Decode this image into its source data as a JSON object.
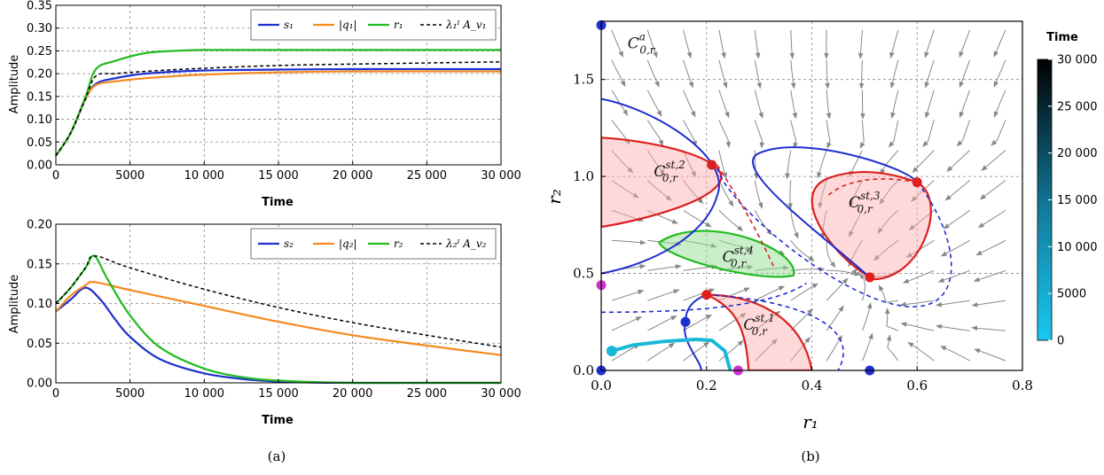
{
  "captions": {
    "a": "(a)",
    "b": "(b)"
  },
  "colors": {
    "blue": "#1f2fd0",
    "orange": "#f58a1f",
    "green": "#22bb22",
    "black": "#000000",
    "red": "#dd1f1f",
    "cyan": "#19b8d8",
    "magenta": "#cc33cc",
    "stream": "#888888",
    "red_fill": "rgba(255,170,170,0.45)",
    "green_fill": "rgba(150,220,150,0.5)"
  },
  "chart_data": [
    {
      "id": "top",
      "type": "line",
      "xlabel": "Time",
      "ylabel": "Amplitude",
      "xlim": [
        0,
        30000
      ],
      "ylim": [
        0,
        0.35
      ],
      "xticks": [
        0,
        5000,
        10000,
        15000,
        20000,
        25000,
        30000
      ],
      "xtick_labels": [
        "0",
        "5000",
        "10 000",
        "15 000",
        "20 000",
        "25 000",
        "30 000"
      ],
      "yticks": [
        0,
        0.05,
        0.1,
        0.15,
        0.2,
        0.25,
        0.3,
        0.35
      ],
      "ytick_labels": [
        "0.00",
        "0.05",
        "0.10",
        "0.15",
        "0.20",
        "0.25",
        "0.30",
        "0.35"
      ],
      "grid": true,
      "legend_position": "top-right",
      "series": [
        {
          "name": "s₁",
          "color": "blue",
          "dash": false,
          "x": [
            0,
            1000,
            2000,
            2700,
            4000,
            6000,
            10000,
            15000,
            20000,
            30000
          ],
          "y": [
            0.02,
            0.07,
            0.145,
            0.178,
            0.19,
            0.2,
            0.207,
            0.209,
            0.21,
            0.21
          ]
        },
        {
          "name": "|q₁|",
          "color": "orange",
          "dash": false,
          "x": [
            0,
            1000,
            2000,
            2700,
            4000,
            6000,
            10000,
            15000,
            20000,
            30000
          ],
          "y": [
            0.02,
            0.07,
            0.145,
            0.175,
            0.183,
            0.19,
            0.198,
            0.203,
            0.205,
            0.205
          ]
        },
        {
          "name": "r₁",
          "color": "green",
          "dash": false,
          "x": [
            0,
            1000,
            2000,
            2700,
            4000,
            6000,
            8000,
            10000,
            15000,
            30000
          ],
          "y": [
            0.02,
            0.07,
            0.15,
            0.21,
            0.228,
            0.245,
            0.25,
            0.252,
            0.252,
            0.252
          ]
        },
        {
          "name": "λ₁ᴵ A_v₁",
          "color": "black",
          "dash": true,
          "x": [
            0,
            1000,
            2000,
            2700,
            4000,
            6000,
            10000,
            15000,
            20000,
            30000
          ],
          "y": [
            0.02,
            0.07,
            0.145,
            0.195,
            0.2,
            0.205,
            0.212,
            0.218,
            0.221,
            0.226
          ]
        }
      ]
    },
    {
      "id": "bottom",
      "type": "line",
      "xlabel": "Time",
      "ylabel": "Amplitude",
      "xlim": [
        0,
        30000
      ],
      "ylim": [
        0,
        0.2
      ],
      "xticks": [
        0,
        5000,
        10000,
        15000,
        20000,
        25000,
        30000
      ],
      "xtick_labels": [
        "0",
        "5000",
        "10 000",
        "15 000",
        "20 000",
        "25 000",
        "30 000"
      ],
      "yticks": [
        0,
        0.05,
        0.1,
        0.15,
        0.2
      ],
      "ytick_labels": [
        "0.00",
        "0.05",
        "0.10",
        "0.15",
        "0.20"
      ],
      "grid": true,
      "legend_position": "top-right",
      "series": [
        {
          "name": "s₂",
          "color": "blue",
          "dash": false,
          "x": [
            0,
            1000,
            2000,
            3000,
            4000,
            5000,
            7000,
            10000,
            13000,
            16000,
            20000,
            25000,
            30000
          ],
          "y": [
            0.09,
            0.105,
            0.12,
            0.105,
            0.08,
            0.058,
            0.03,
            0.012,
            0.004,
            0.001,
            0.0,
            0.0,
            0.0
          ]
        },
        {
          "name": "|q₂|",
          "color": "orange",
          "dash": false,
          "x": [
            0,
            1000,
            2000,
            2600,
            5000,
            10000,
            15000,
            20000,
            25000,
            30000
          ],
          "y": [
            0.09,
            0.11,
            0.123,
            0.127,
            0.117,
            0.097,
            0.077,
            0.06,
            0.047,
            0.035
          ]
        },
        {
          "name": "r₂",
          "color": "green",
          "dash": false,
          "x": [
            0,
            1000,
            2000,
            2600,
            3500,
            5000,
            7000,
            10000,
            13000,
            16000,
            20000,
            25000,
            30000
          ],
          "y": [
            0.1,
            0.12,
            0.145,
            0.16,
            0.13,
            0.085,
            0.045,
            0.018,
            0.006,
            0.002,
            0.0,
            0.0,
            0.0
          ]
        },
        {
          "name": "λ₂ᴵ A_v₂",
          "color": "black",
          "dash": true,
          "x": [
            0,
            1000,
            2000,
            2600,
            5000,
            10000,
            15000,
            20000,
            25000,
            30000
          ],
          "y": [
            0.1,
            0.12,
            0.145,
            0.16,
            0.145,
            0.118,
            0.095,
            0.076,
            0.06,
            0.045
          ]
        }
      ]
    },
    {
      "id": "phase",
      "type": "scatter",
      "xlabel": "r₁",
      "ylabel": "r₂",
      "xlim": [
        0,
        0.8
      ],
      "ylim": [
        0,
        1.8
      ],
      "xticks": [
        0,
        0.2,
        0.4,
        0.6,
        0.8
      ],
      "xtick_labels": [
        "0.0",
        "0.2",
        "0.4",
        "0.6",
        "0.8"
      ],
      "yticks": [
        0,
        0.5,
        1.0,
        1.5
      ],
      "ytick_labels": [
        "0.0",
        "0.5",
        "1.0",
        "1.5"
      ],
      "grid": true,
      "colorbar": {
        "title": "Time",
        "min": 0,
        "max": 30000,
        "ticks": [
          0,
          5000,
          10000,
          15000,
          20000,
          25000,
          30000
        ],
        "tick_labels": [
          "0",
          "5000",
          "10 000",
          "15 000",
          "20 000",
          "25 000",
          "30 000"
        ],
        "color_low": "#19c8f0",
        "color_high": "#000000"
      },
      "regions": [
        {
          "label": "C",
          "sup": "st,2",
          "sub": "0,r",
          "fill": "red"
        },
        {
          "label": "C",
          "sup": "st,3",
          "sub": "0,r",
          "fill": "red"
        },
        {
          "label": "C",
          "sup": "st,4",
          "sub": "0,r",
          "fill": "green"
        },
        {
          "label": "C",
          "sup": "st,1",
          "sub": "0,r",
          "fill": "red"
        },
        {
          "label": "C",
          "sup": "a",
          "sub": "0,r",
          "fill": "none"
        }
      ],
      "trajectory": {
        "x": [
          0.02,
          0.06,
          0.12,
          0.18,
          0.21,
          0.235,
          0.245
        ],
        "y": [
          0.1,
          0.13,
          0.15,
          0.16,
          0.155,
          0.1,
          0.0
        ]
      },
      "points": [
        {
          "x": 0.21,
          "y": 1.06,
          "color": "red"
        },
        {
          "x": 0.6,
          "y": 0.97,
          "color": "red"
        },
        {
          "x": 0.51,
          "y": 0.48,
          "color": "red"
        },
        {
          "x": 0.2,
          "y": 0.39,
          "color": "red"
        },
        {
          "x": 0.16,
          "y": 0.25,
          "color": "blue"
        },
        {
          "x": 0.0,
          "y": 1.78,
          "color": "blue"
        },
        {
          "x": 0.51,
          "y": 0.0,
          "color": "blue"
        },
        {
          "x": 0.0,
          "y": 0.0,
          "color": "blue"
        },
        {
          "x": 0.0,
          "y": 0.44,
          "color": "magenta"
        },
        {
          "x": 0.26,
          "y": 0.0,
          "color": "magenta"
        },
        {
          "x": 0.02,
          "y": 0.1,
          "color": "cyan"
        }
      ]
    }
  ]
}
